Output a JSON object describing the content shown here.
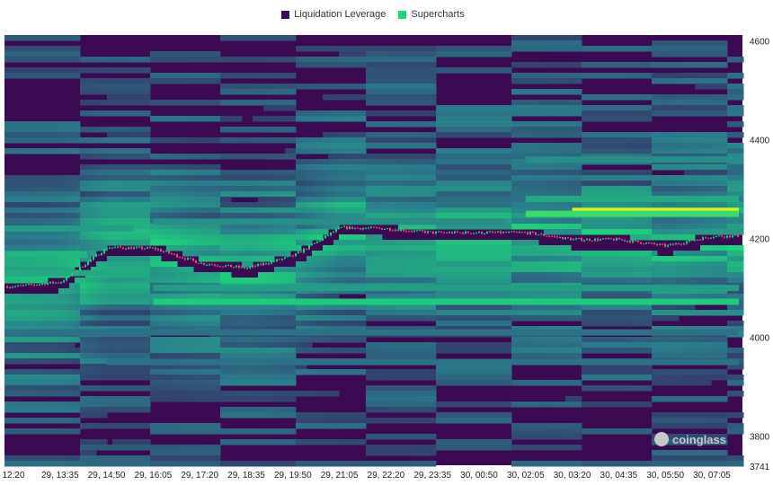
{
  "legend": {
    "items": [
      {
        "label": "Liquidation Leverage",
        "color": "#3b0a52"
      },
      {
        "label": "Supercharts",
        "color": "#1dd67a"
      }
    ]
  },
  "watermark": "coinglass",
  "chart_data": {
    "type": "heatmap",
    "title": "",
    "x_tick_labels": [
      "12:20",
      "29, 13:35",
      "29, 14:50",
      "29, 16:05",
      "29, 17:20",
      "29, 18:35",
      "29, 19:50",
      "29, 21:05",
      "29, 22:20",
      "29, 23:35",
      "30, 00:50",
      "30, 02:05",
      "30, 03:20",
      "30, 04:35",
      "30, 05:50",
      "30, 07:05"
    ],
    "y_ticks": [
      4600,
      4400,
      4200,
      4000,
      3800
    ],
    "y_min_label": "3741",
    "ylim": [
      3741,
      4612
    ],
    "y_axis_position": "right",
    "colorscale": [
      "#3b0a52",
      "#2a7d8c",
      "#1dd67a",
      "#d9f21e"
    ],
    "price_series": [
      {
        "x": "12:20",
        "price": 4103
      },
      {
        "x": "29, 13:35",
        "price": 4112
      },
      {
        "x": "29, 14:50",
        "price": 4182
      },
      {
        "x": "29, 16:05",
        "price": 4180
      },
      {
        "x": "29, 17:20",
        "price": 4150
      },
      {
        "x": "29, 18:35",
        "price": 4140
      },
      {
        "x": "29, 19:50",
        "price": 4165
      },
      {
        "x": "29, 21:05",
        "price": 4222
      },
      {
        "x": "29, 22:20",
        "price": 4220
      },
      {
        "x": "29, 23:35",
        "price": 4212
      },
      {
        "x": "30, 00:50",
        "price": 4212
      },
      {
        "x": "30, 02:05",
        "price": 4212
      },
      {
        "x": "30, 03:20",
        "price": 4198
      },
      {
        "x": "30, 04:35",
        "price": 4198
      },
      {
        "x": "30, 05:50",
        "price": 4185
      },
      {
        "x": "30, 07:05",
        "price": 4205
      }
    ],
    "liquidation_bands": [
      {
        "price": 4256,
        "from": "30, 03:20",
        "to": "30, 07:05",
        "intensity": 1.0
      },
      {
        "price": 4250,
        "from": "30, 02:05",
        "to": "30, 07:05",
        "intensity": 0.72
      },
      {
        "price": 4280,
        "from": "30, 02:05",
        "to": "30, 07:05",
        "intensity": 0.5
      },
      {
        "price": 4360,
        "from": "30, 02:05",
        "to": "30, 07:05",
        "intensity": 0.4
      },
      {
        "price": 4072,
        "from": "29, 16:05",
        "to": "30, 07:05",
        "intensity": 0.62
      },
      {
        "price": 4100,
        "from": "29, 16:05",
        "to": "30, 07:05",
        "intensity": 0.45
      },
      {
        "price": 4220,
        "from": "12:20",
        "to": "29, 14:50",
        "intensity": 0.45
      },
      {
        "price": 4130,
        "from": "12:20",
        "to": "29, 14:50",
        "intensity": 0.5
      },
      {
        "price": 4168,
        "from": "12:20",
        "to": "29, 13:35",
        "intensity": 0.55
      },
      {
        "price": 4234,
        "from": "29, 16:05",
        "to": "30, 00:50",
        "intensity": 0.4
      },
      {
        "price": 4010,
        "from": "12:20",
        "to": "30, 07:05",
        "intensity": 0.3
      },
      {
        "price": 3950,
        "from": "29, 14:50",
        "to": "30, 07:05",
        "intensity": 0.3
      }
    ]
  }
}
